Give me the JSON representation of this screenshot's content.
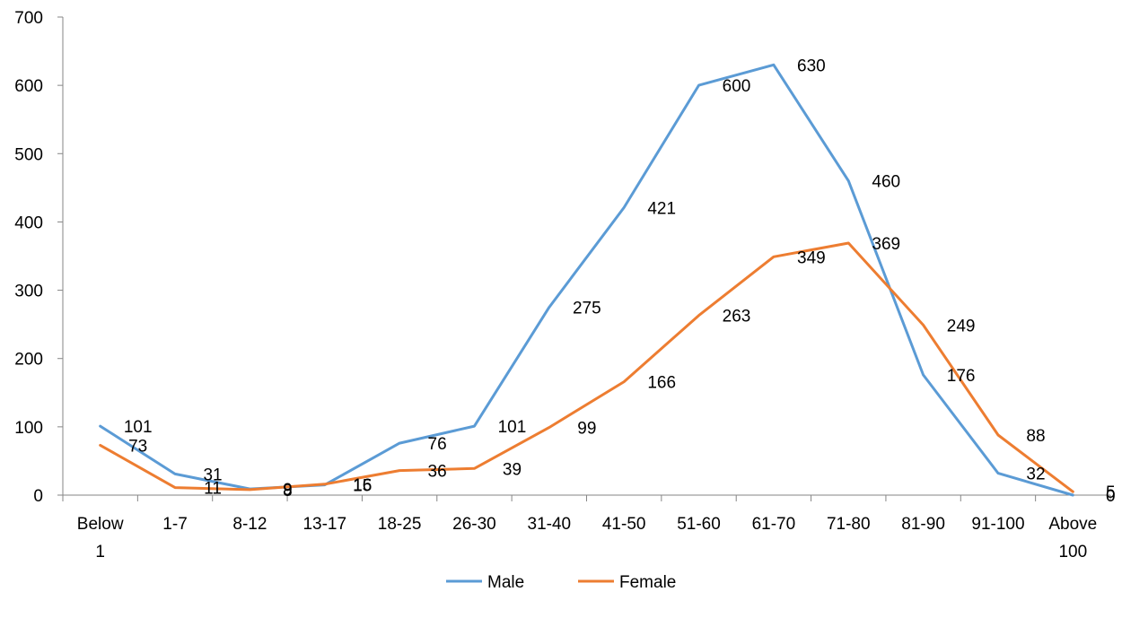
{
  "chart_data": {
    "type": "line",
    "categories": [
      [
        "Below",
        "1"
      ],
      [
        "1-7"
      ],
      [
        "8-12"
      ],
      [
        "13-17"
      ],
      [
        "18-25"
      ],
      [
        "26-30"
      ],
      [
        "31-40"
      ],
      [
        "41-50"
      ],
      [
        "51-60"
      ],
      [
        "61-70"
      ],
      [
        "71-80"
      ],
      [
        "81-90"
      ],
      [
        "91-100"
      ],
      [
        "Above",
        "100"
      ]
    ],
    "series": [
      {
        "name": "Male",
        "color": "#5B9BD5",
        "values": [
          101,
          31,
          9,
          15,
          76,
          101,
          275,
          421,
          600,
          630,
          460,
          176,
          32,
          0
        ]
      },
      {
        "name": "Female",
        "color": "#ED7D31",
        "values": [
          73,
          11,
          8,
          16,
          36,
          39,
          99,
          166,
          263,
          349,
          369,
          249,
          88,
          5
        ]
      }
    ],
    "ylim": [
      0,
      700
    ],
    "yticks": [
      0,
      100,
      200,
      300,
      400,
      500,
      600,
      700
    ],
    "legend_position": "bottom",
    "grid": false,
    "data_labels": true
  }
}
